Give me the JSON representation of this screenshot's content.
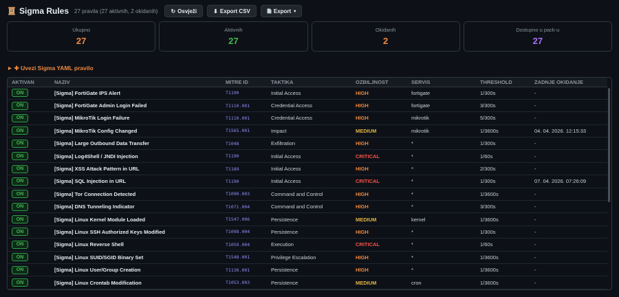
{
  "header": {
    "title": "Sigma Rules",
    "subtitle": "27 pravila (27 aktivnih, 2 okidanih)",
    "refresh_label": "Osvježi",
    "export_csv_label": "Export CSV",
    "export_label": "Export",
    "export_caret": "▾"
  },
  "stats": [
    {
      "label": "Ukupno",
      "value": "27",
      "color": "#f0883e"
    },
    {
      "label": "Aktivnih",
      "value": "27",
      "color": "#3fb950"
    },
    {
      "label": "Okidanih",
      "value": "2",
      "color": "#f0883e"
    },
    {
      "label": "Dostupno u pack-u",
      "value": "27",
      "color": "#a371f7"
    }
  ],
  "import": {
    "label": "✚ Uvezi Sigma YAML pravilo"
  },
  "table": {
    "columns": [
      "AKTIVAN",
      "NAZIV",
      "MITRE ID",
      "TAKTIKA",
      "OZBILJNOST",
      "SERVIS",
      "THRESHOLD",
      "ZADNJE OKIDANJE"
    ],
    "rows": [
      {
        "active": "ON",
        "name": "[Sigma] FortiGate IPS Alert",
        "mitre": "T1190",
        "tactic": "Initial Access",
        "severity": "HIGH",
        "service": "fortigate",
        "threshold": "1/300s",
        "last": "-"
      },
      {
        "active": "ON",
        "name": "[Sigma] FortiGate Admin Login Failed",
        "mitre": "T1110.001",
        "tactic": "Credential Access",
        "severity": "HIGH",
        "service": "fortigate",
        "threshold": "3/300s",
        "last": "-"
      },
      {
        "active": "ON",
        "name": "[Sigma] MikroTik Login Failure",
        "mitre": "T1110.001",
        "tactic": "Credential Access",
        "severity": "HIGH",
        "service": "mikrotik",
        "threshold": "5/300s",
        "last": "-"
      },
      {
        "active": "ON",
        "name": "[Sigma] MikroTik Config Changed",
        "mitre": "T1565.001",
        "tactic": "Impact",
        "severity": "MEDIUM",
        "service": "mikrotik",
        "threshold": "1/3600s",
        "last": "04. 04. 2026. 12:15:33"
      },
      {
        "active": "ON",
        "name": "[Sigma] Large Outbound Data Transfer",
        "mitre": "T1048",
        "tactic": "Exfiltration",
        "severity": "HIGH",
        "service": "*",
        "threshold": "1/300s",
        "last": "-"
      },
      {
        "active": "ON",
        "name": "[Sigma] Log4Shell / JNDI Injection",
        "mitre": "T1190",
        "tactic": "Initial Access",
        "severity": "CRITICAL",
        "service": "*",
        "threshold": "1/60s",
        "last": "-"
      },
      {
        "active": "ON",
        "name": "[Sigma] XSS Attack Pattern in URL",
        "mitre": "T1189",
        "tactic": "Initial Access",
        "severity": "HIGH",
        "service": "*",
        "threshold": "2/300s",
        "last": "-"
      },
      {
        "active": "ON",
        "name": "[Sigma] SQL Injection in URL",
        "mitre": "T1190",
        "tactic": "Initial Access",
        "severity": "CRITICAL",
        "service": "*",
        "threshold": "1/300s",
        "last": "07. 04. 2026. 07:26:09"
      },
      {
        "active": "ON",
        "name": "[Sigma] Tor Connection Detected",
        "mitre": "T1090.003",
        "tactic": "Command and Control",
        "severity": "HIGH",
        "service": "*",
        "threshold": "1/3600s",
        "last": "-"
      },
      {
        "active": "ON",
        "name": "[Sigma] DNS Tunneling Indicator",
        "mitre": "T1071.004",
        "tactic": "Command and Control",
        "severity": "HIGH",
        "service": "*",
        "threshold": "3/300s",
        "last": "-"
      },
      {
        "active": "ON",
        "name": "[Sigma] Linux Kernel Module Loaded",
        "mitre": "T1547.006",
        "tactic": "Persistence",
        "severity": "MEDIUM",
        "service": "kernel",
        "threshold": "1/3600s",
        "last": "-"
      },
      {
        "active": "ON",
        "name": "[Sigma] Linux SSH Authorized Keys Modified",
        "mitre": "T1098.004",
        "tactic": "Persistence",
        "severity": "HIGH",
        "service": "*",
        "threshold": "1/300s",
        "last": "-"
      },
      {
        "active": "ON",
        "name": "[Sigma] Linux Reverse Shell",
        "mitre": "T1059.004",
        "tactic": "Execution",
        "severity": "CRITICAL",
        "service": "*",
        "threshold": "1/60s",
        "last": "-"
      },
      {
        "active": "ON",
        "name": "[Sigma] Linux SUID/SGID Binary Set",
        "mitre": "T1548.001",
        "tactic": "Privilege Escalation",
        "severity": "HIGH",
        "service": "*",
        "threshold": "1/3600s",
        "last": "-"
      },
      {
        "active": "ON",
        "name": "[Sigma] Linux User/Group Creation",
        "mitre": "T1136.001",
        "tactic": "Persistence",
        "severity": "HIGH",
        "service": "*",
        "threshold": "1/3600s",
        "last": "-"
      },
      {
        "active": "ON",
        "name": "[Sigma] Linux Crontab Modification",
        "mitre": "T1053.003",
        "tactic": "Persistence",
        "severity": "MEDIUM",
        "service": "cron",
        "threshold": "1/3600s",
        "last": "-"
      }
    ]
  }
}
